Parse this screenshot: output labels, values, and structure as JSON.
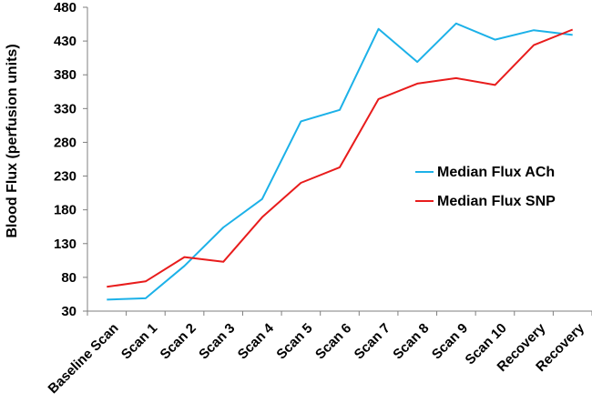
{
  "chart_data": {
    "type": "line",
    "title": "",
    "xlabel": "",
    "ylabel": "Blood Flux (perfusion units)",
    "ylim": [
      30,
      480
    ],
    "yticks": [
      30,
      80,
      130,
      180,
      230,
      280,
      330,
      380,
      430,
      480
    ],
    "grid": false,
    "legend_position": "right",
    "categories": [
      "Baseline Scan",
      "Scan 1",
      "Scan 2",
      "Scan 3",
      "Scan 4",
      "Scan 5",
      "Scan 6",
      "Scan 7",
      "Scan 8",
      "Scan 9",
      "Scan 10",
      "Recovery",
      "Recovery"
    ],
    "series": [
      {
        "name": "Median Flux ACh",
        "color": "#1cb1e8",
        "values": [
          47,
          49,
          97,
          154,
          196,
          311,
          328,
          448,
          399,
          456,
          432,
          446,
          439
        ]
      },
      {
        "name": "Median Flux SNP",
        "color": "#e81c1c",
        "values": [
          66,
          74,
          110,
          103,
          169,
          220,
          243,
          344,
          367,
          375,
          365,
          424,
          447
        ]
      }
    ]
  }
}
